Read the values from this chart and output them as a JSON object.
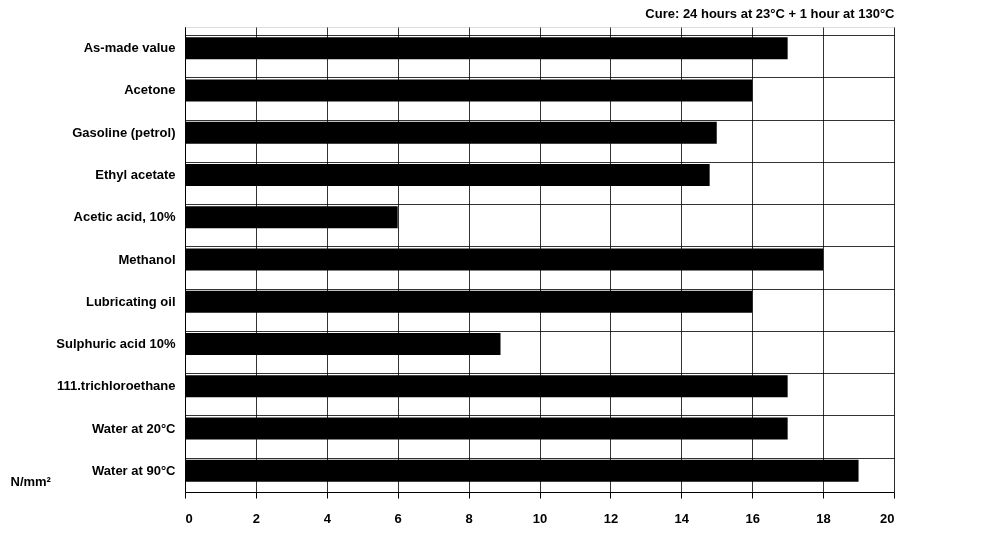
{
  "chart_data": {
    "type": "bar",
    "orientation": "horizontal",
    "title": "Cure: 24 hours at 23°C + 1 hour at 130°C",
    "xlabel": "N/mm²",
    "categories": [
      "As-made value",
      "Acetone",
      "Gasoline (petrol)",
      "Ethyl acetate",
      "Acetic acid, 10%",
      "Methanol",
      "Lubricating oil",
      "Sulphuric acid 10%",
      "111.trichloroethane",
      "Water at 20°C",
      "Water at 90°C"
    ],
    "values": [
      17,
      16,
      15,
      14.8,
      6,
      18,
      16,
      8.9,
      17,
      17,
      19
    ],
    "color": "#000000",
    "xlim": [
      0,
      20
    ],
    "xticks": [
      0,
      2,
      4,
      6,
      8,
      10,
      12,
      14,
      16,
      18,
      20
    ],
    "grid": true
  }
}
